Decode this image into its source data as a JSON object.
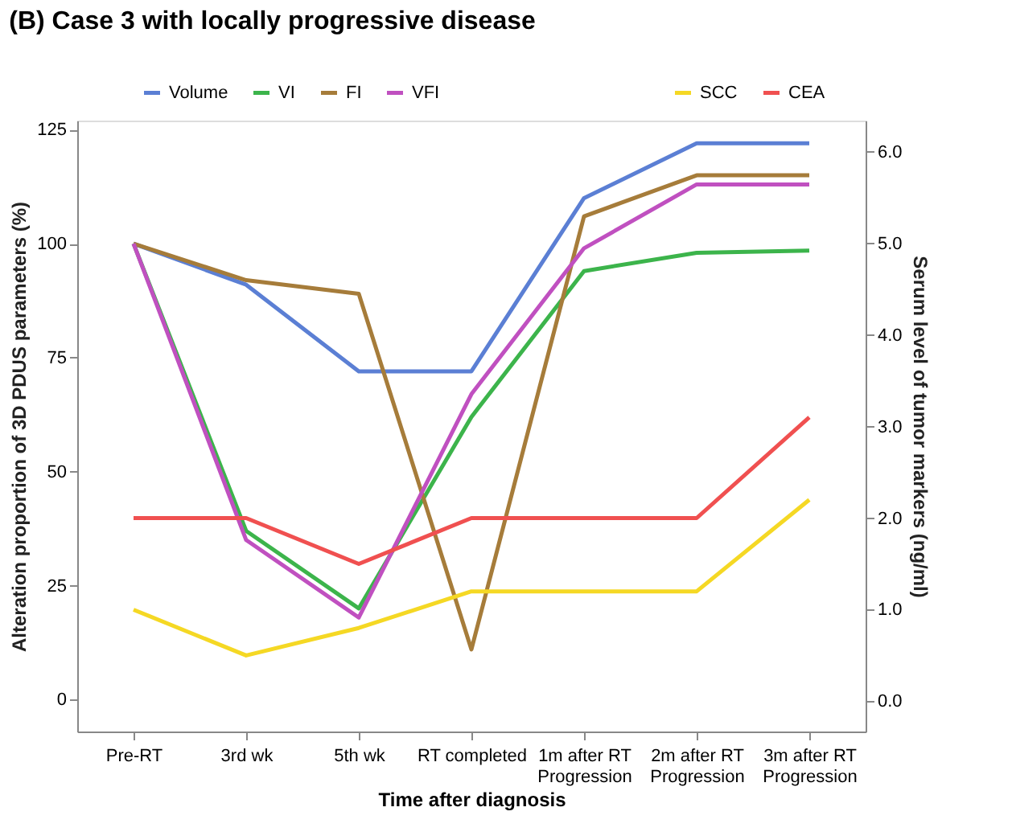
{
  "chart_data": {
    "type": "line",
    "title": "(B) Case 3 with locally progressive disease",
    "xlabel": "Time after diagnosis",
    "ylabel": "Alteration proportion of 3D PDUS parameters (%)",
    "y2label": "Serum level of tumor markers (ng/ml)",
    "categories": [
      "Pre-RT",
      "3rd wk",
      "5th wk",
      "RT completed",
      "1m after RT\nProgression",
      "2m after RT\nProgression",
      "3m after RT\nProgression"
    ],
    "series": [
      {
        "name": "Volume",
        "color": "#5b7fd4",
        "values": [
          100,
          91,
          72,
          72,
          110,
          122,
          122
        ]
      },
      {
        "name": "VI",
        "color": "#3cb44b",
        "values": [
          100,
          37,
          20,
          62,
          94,
          98,
          98.5
        ]
      },
      {
        "name": "FI",
        "color": "#a67c3a",
        "values": [
          100,
          92,
          89,
          11,
          106,
          115,
          115
        ]
      },
      {
        "name": "VFI",
        "color": "#c050c0",
        "values": [
          100,
          35,
          18,
          67,
          99,
          113,
          113
        ]
      },
      {
        "name": "SCC",
        "color": "#f5d824",
        "axis": "y2",
        "values": [
          1.0,
          0.5,
          0.8,
          1.2,
          1.2,
          1.2,
          2.2
        ]
      },
      {
        "name": "CEA",
        "color": "#f05050",
        "axis": "y2",
        "values": [
          2.0,
          2.0,
          1.5,
          2.0,
          2.0,
          2.0,
          3.1
        ]
      }
    ],
    "ylim": [
      -7,
      127
    ],
    "yticks": [
      0,
      25,
      50,
      75,
      100,
      125
    ],
    "y2lim": [
      -0.33,
      6.34
    ],
    "y2ticks": [
      {
        "value": 0,
        "label": "0.0"
      },
      {
        "value": 1,
        "label": "1.0"
      },
      {
        "value": 2,
        "label": "2.0"
      },
      {
        "value": 3,
        "label": "3.0"
      },
      {
        "value": 4,
        "label": "4.0"
      },
      {
        "value": 5,
        "label": "5.0"
      },
      {
        "value": 6,
        "label": "6.0"
      }
    ],
    "grid": false,
    "legend": "top",
    "line_style": "solid",
    "marker": "none"
  }
}
